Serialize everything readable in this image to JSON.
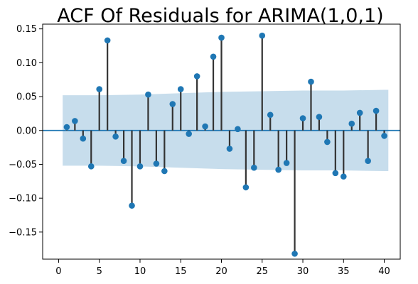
{
  "chart_data": {
    "type": "scatter",
    "subtype": "stem",
    "title": "ACF Of Residuals for ARIMA(1,0,1)",
    "xlabel": "",
    "ylabel": "",
    "xlim": [
      -1.96,
      41.96
    ],
    "ylim": [
      -0.19,
      0.157
    ],
    "xticks": [
      0,
      5,
      10,
      15,
      20,
      25,
      30,
      35,
      40
    ],
    "xtick_labels": [
      "0",
      "5",
      "10",
      "15",
      "20",
      "25",
      "30",
      "35",
      "40"
    ],
    "yticks": [
      0.15,
      0.1,
      0.05,
      0.0,
      -0.05,
      -0.1,
      -0.15
    ],
    "ytick_labels": [
      "0.15",
      "0.10",
      "0.05",
      "0.00",
      "−0.05",
      "−0.10",
      "−0.15"
    ],
    "grid": false,
    "colors": {
      "marker": "#1f77b4",
      "stem": "#333333",
      "zero_line": "#1f77b4",
      "confidence_band": "#1f77b4"
    },
    "series": [
      {
        "x": [
          1,
          2,
          3,
          4,
          5,
          6,
          7,
          8,
          9,
          10,
          11,
          12,
          13,
          14,
          15,
          16,
          17,
          18,
          19,
          20,
          21,
          22,
          23,
          24,
          25,
          26,
          27,
          28,
          29,
          30,
          31,
          32,
          33,
          34,
          35,
          36,
          37,
          38,
          39,
          40
        ],
        "values": [
          0.005,
          0.014,
          -0.012,
          -0.053,
          0.061,
          0.133,
          -0.009,
          -0.045,
          -0.111,
          -0.053,
          0.053,
          -0.049,
          -0.06,
          0.039,
          0.061,
          -0.005,
          0.08,
          0.006,
          0.109,
          0.137,
          -0.027,
          0.002,
          -0.084,
          -0.055,
          0.14,
          0.023,
          -0.058,
          -0.048,
          -0.182,
          0.018,
          0.072,
          0.02,
          -0.017,
          -0.063,
          -0.068,
          0.01,
          0.026,
          -0.045,
          0.029,
          -0.008
        ]
      }
    ],
    "confidence_band": {
      "x": [
        0.5,
        1,
        5,
        10,
        15,
        20,
        25,
        30,
        35,
        40,
        40.5
      ],
      "upper": [
        0.052,
        0.052,
        0.052,
        0.053,
        0.055,
        0.057,
        0.058,
        0.059,
        0.059,
        0.06,
        0.06
      ],
      "lower": [
        -0.052,
        -0.052,
        -0.052,
        -0.053,
        -0.055,
        -0.057,
        -0.058,
        -0.059,
        -0.059,
        -0.06,
        -0.06
      ]
    }
  }
}
